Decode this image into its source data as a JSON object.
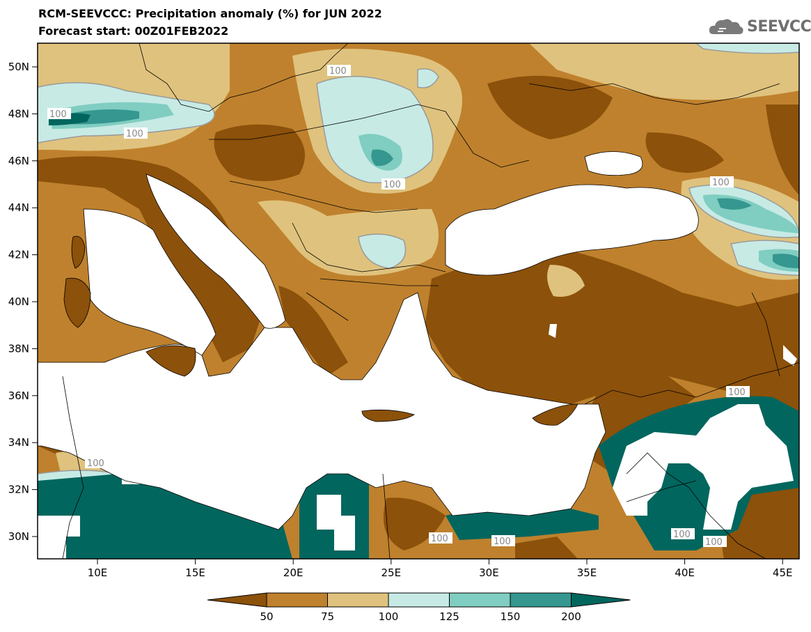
{
  "header": {
    "title": "RCM-SEEVCCC: Precipitation anomaly (%) for JUN 2022",
    "subtitle": "Forecast start: 00Z01FEB2022",
    "logo_text": "SEEVCCC"
  },
  "map": {
    "lat_labels": [
      "50N",
      "48N",
      "46N",
      "44N",
      "42N",
      "40N",
      "38N",
      "36N",
      "34N",
      "32N",
      "30N"
    ],
    "lon_labels": [
      "10E",
      "15E",
      "20E",
      "25E",
      "30E",
      "35E",
      "40E",
      "45E"
    ],
    "contour_label": "100",
    "colors": {
      "below50": "#8c510a",
      "50_75": "#bf812d",
      "75_100": "#dfc27d",
      "100_125": "#c7eae5",
      "125_150": "#80cdc1",
      "150_200": "#35978f",
      "above200": "#01665e",
      "sea": "#ffffff",
      "contour": "#9a9a9a"
    }
  },
  "legend": {
    "ticks": [
      "50",
      "75",
      "100",
      "125",
      "150",
      "200"
    ],
    "colors": [
      "#8c510a",
      "#bf812d",
      "#dfc27d",
      "#c7eae5",
      "#80cdc1",
      "#35978f",
      "#01665e"
    ]
  }
}
